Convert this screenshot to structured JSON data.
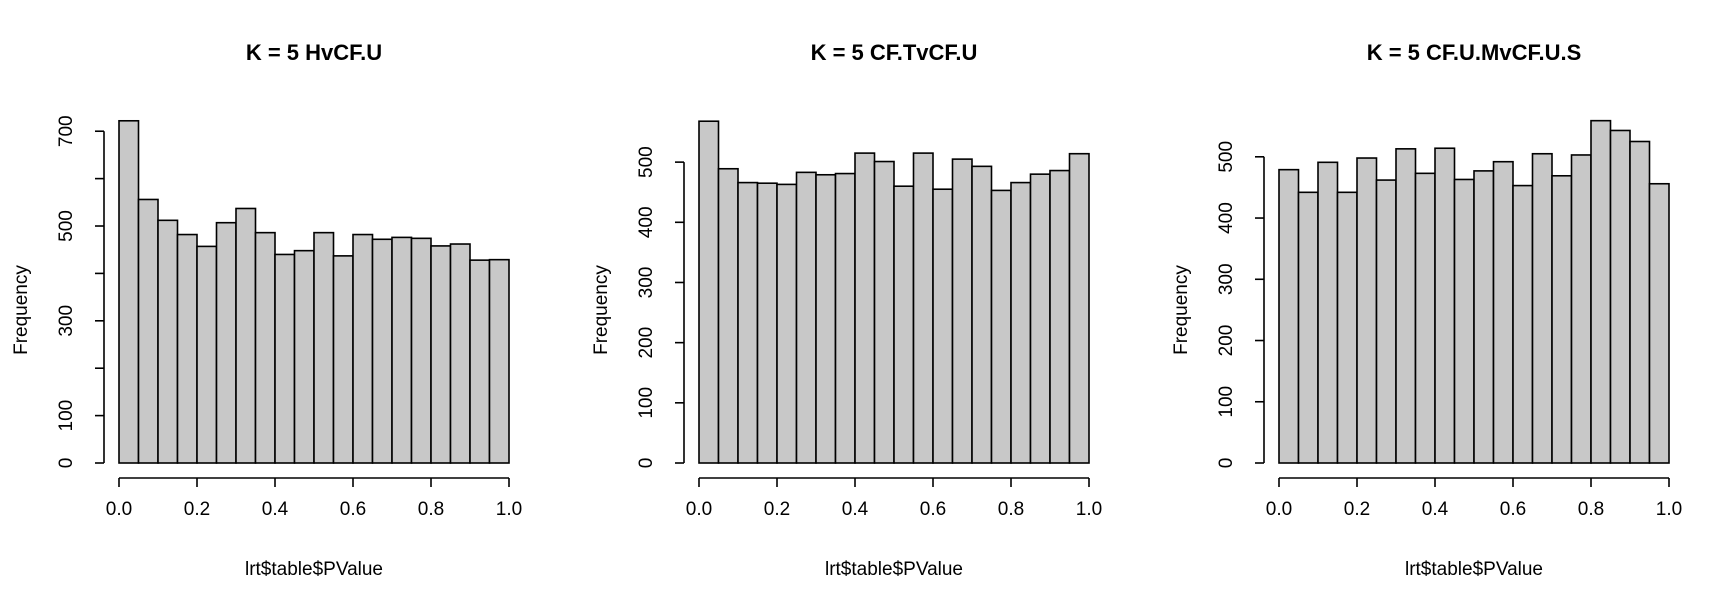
{
  "chart_data": [
    {
      "type": "bar",
      "title": "K = 5 HvCF.U",
      "xlabel": "lrt$table$PValue",
      "ylabel": "Frequency",
      "bin_edges": [
        0.0,
        0.05,
        0.1,
        0.15,
        0.2,
        0.25,
        0.3,
        0.35,
        0.4,
        0.45,
        0.5,
        0.55,
        0.6,
        0.65,
        0.7,
        0.75,
        0.8,
        0.85,
        0.9,
        0.95,
        1.0
      ],
      "values": [
        722,
        556,
        512,
        482,
        457,
        507,
        537,
        486,
        440,
        448,
        486,
        437,
        482,
        472,
        476,
        474,
        458,
        462,
        428,
        429
      ],
      "xlim": [
        0,
        1
      ],
      "ylim": [
        0,
        730
      ],
      "x_ticks": [
        "0.0",
        "0.2",
        "0.4",
        "0.6",
        "0.8",
        "1.0"
      ],
      "y_ticks": [
        "0",
        "100",
        "300",
        "500",
        "700"
      ],
      "y_tick_values": [
        0,
        100,
        200,
        300,
        400,
        500,
        600,
        700
      ],
      "y_tick_labeled": [
        true,
        true,
        false,
        true,
        false,
        true,
        false,
        true
      ]
    },
    {
      "type": "bar",
      "title": "K = 5 CF.TvCF.U",
      "xlabel": "lrt$table$PValue",
      "ylabel": "Frequency",
      "bin_edges": [
        0.0,
        0.05,
        0.1,
        0.15,
        0.2,
        0.25,
        0.3,
        0.35,
        0.4,
        0.45,
        0.5,
        0.55,
        0.6,
        0.65,
        0.7,
        0.75,
        0.8,
        0.85,
        0.9,
        0.95,
        1.0
      ],
      "values": [
        568,
        489,
        466,
        465,
        463,
        483,
        479,
        481,
        515,
        501,
        460,
        515,
        455,
        505,
        493,
        453,
        466,
        480,
        486,
        514
      ],
      "xlim": [
        0,
        1
      ],
      "ylim": [
        0,
        575
      ],
      "x_ticks": [
        "0.0",
        "0.2",
        "0.4",
        "0.6",
        "0.8",
        "1.0"
      ],
      "y_ticks": [
        "0",
        "100",
        "200",
        "300",
        "400",
        "500"
      ],
      "y_tick_values": [
        0,
        100,
        200,
        300,
        400,
        500
      ],
      "y_tick_labeled": [
        true,
        true,
        true,
        true,
        true,
        true
      ]
    },
    {
      "type": "bar",
      "title": "K = 5 CF.U.MvCF.U.S",
      "xlabel": "lrt$table$PValue",
      "ylabel": "Frequency",
      "bin_edges": [
        0.0,
        0.05,
        0.1,
        0.15,
        0.2,
        0.25,
        0.3,
        0.35,
        0.4,
        0.45,
        0.5,
        0.55,
        0.6,
        0.65,
        0.7,
        0.75,
        0.8,
        0.85,
        0.9,
        0.95,
        1.0
      ],
      "values": [
        479,
        442,
        491,
        442,
        498,
        462,
        513,
        473,
        514,
        463,
        477,
        492,
        453,
        505,
        469,
        503,
        559,
        543,
        525,
        456
      ],
      "xlim": [
        0,
        1
      ],
      "ylim": [
        0,
        565
      ],
      "x_ticks": [
        "0.0",
        "0.2",
        "0.4",
        "0.6",
        "0.8",
        "1.0"
      ],
      "y_ticks": [
        "0",
        "100",
        "200",
        "300",
        "400",
        "500"
      ],
      "y_tick_values": [
        0,
        100,
        200,
        300,
        400,
        500
      ],
      "y_tick_labeled": [
        true,
        true,
        true,
        true,
        true,
        true
      ]
    }
  ]
}
